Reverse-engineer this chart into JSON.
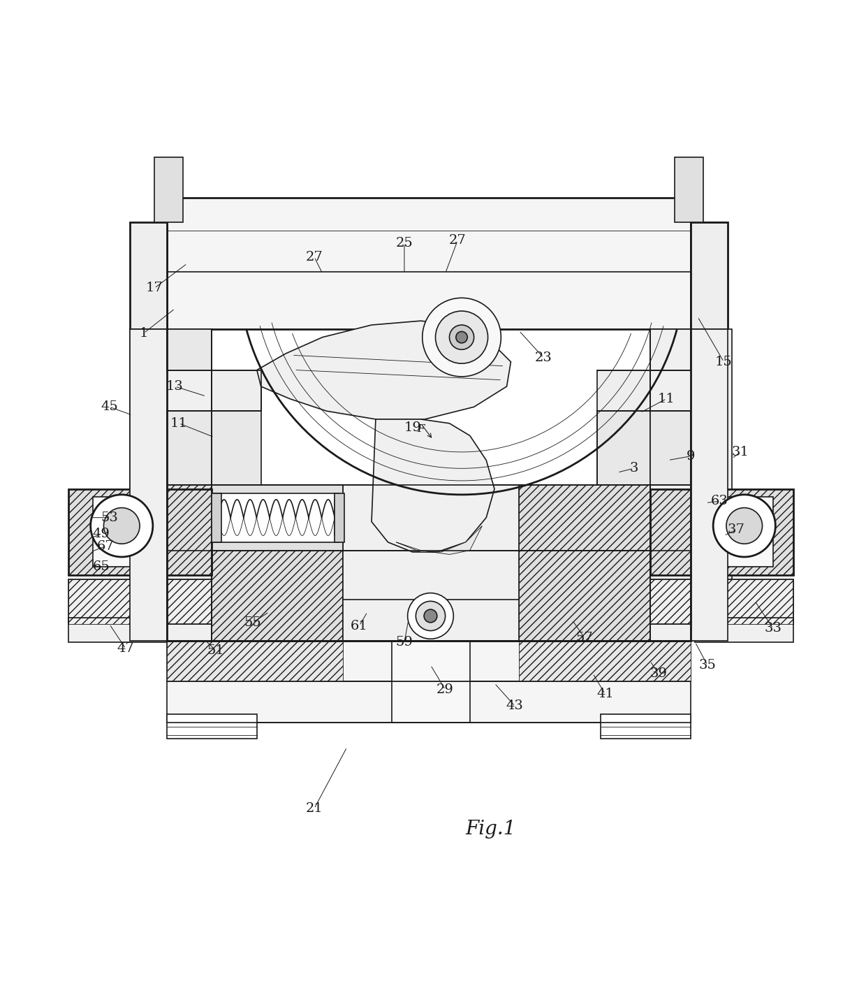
{
  "title": "Fig.1",
  "background_color": "#ffffff",
  "line_color": "#1a1a1a",
  "fig_width": 12.4,
  "fig_height": 14.11,
  "line_width": 1.2,
  "thin_lw": 0.6,
  "thick_lw": 2.0
}
